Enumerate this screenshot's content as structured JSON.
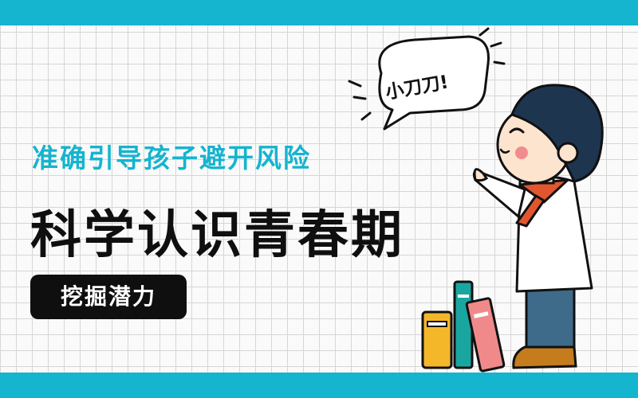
{
  "banner": {
    "subtitle": "准确引导孩子避开风险",
    "title": "科学认识青春期",
    "tag": "挖掘潜力",
    "speech": "小刀刀!"
  },
  "colors": {
    "accent": "#15b4cf",
    "title": "#0f0f0f",
    "tag_background": "#0f0f0f",
    "tag_text": "#ffffff",
    "grid_line": "#d6d6d6"
  },
  "illustration": {
    "character": "cartoon boy with red neckerchief",
    "books": [
      "yellow book",
      "teal book",
      "pink book"
    ]
  }
}
